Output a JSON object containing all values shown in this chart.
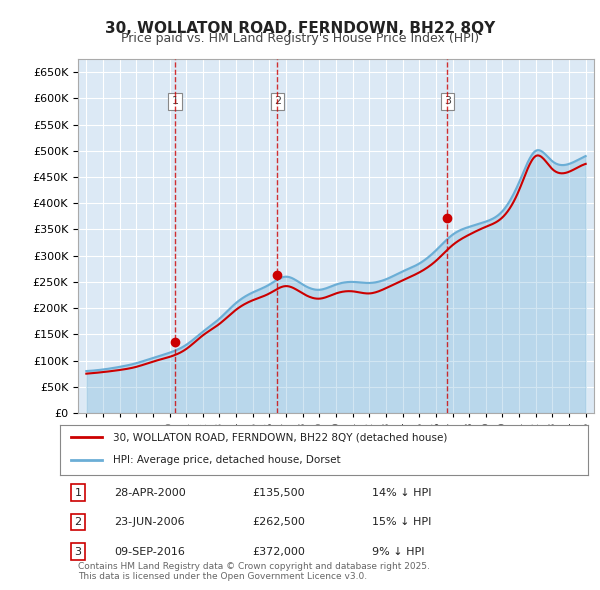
{
  "title": "30, WOLLATON ROAD, FERNDOWN, BH22 8QY",
  "subtitle": "Price paid vs. HM Land Registry's House Price Index (HPI)",
  "hpi_color": "#6baed6",
  "price_color": "#cc0000",
  "background_color": "#ffffff",
  "plot_bg_color": "#dce9f5",
  "grid_color": "#ffffff",
  "ylim": [
    0,
    675000
  ],
  "yticks": [
    0,
    50000,
    100000,
    150000,
    200000,
    250000,
    300000,
    350000,
    400000,
    450000,
    500000,
    550000,
    600000,
    650000
  ],
  "ylabel_format": "£{0}K",
  "transactions": [
    {
      "date_num": 2000.32,
      "price": 135500,
      "label": "1",
      "hpi_pct": 14
    },
    {
      "date_num": 2006.48,
      "price": 262500,
      "label": "2",
      "hpi_pct": 15
    },
    {
      "date_num": 2016.69,
      "price": 372000,
      "label": "3",
      "hpi_pct": 9
    }
  ],
  "transaction_dates_str": [
    "28-APR-2000",
    "23-JUN-2006",
    "09-SEP-2016"
  ],
  "transaction_prices_str": [
    "£135,500",
    "£262,500",
    "£372,000"
  ],
  "transaction_hpi_str": [
    "14% ↓ HPI",
    "15% ↓ HPI",
    "9% ↓ HPI"
  ],
  "legend_line1": "30, WOLLATON ROAD, FERNDOWN, BH22 8QY (detached house)",
  "legend_line2": "HPI: Average price, detached house, Dorset",
  "footer": "Contains HM Land Registry data © Crown copyright and database right 2025.\nThis data is licensed under the Open Government Licence v3.0.",
  "vline_color": "#cc0000",
  "vline_dates": [
    2000.32,
    2006.48,
    2016.69
  ],
  "hpi_data": {
    "years": [
      1995,
      1996,
      1997,
      1998,
      1999,
      2000,
      2001,
      2002,
      2003,
      2004,
      2005,
      2006,
      2007,
      2008,
      2009,
      2010,
      2011,
      2012,
      2013,
      2014,
      2015,
      2016,
      2017,
      2018,
      2019,
      2020,
      2021,
      2022,
      2023,
      2024,
      2025
    ],
    "values": [
      80000,
      83000,
      88000,
      95000,
      105000,
      115000,
      130000,
      155000,
      180000,
      210000,
      230000,
      245000,
      260000,
      245000,
      235000,
      245000,
      250000,
      248000,
      255000,
      270000,
      285000,
      310000,
      340000,
      355000,
      365000,
      385000,
      440000,
      500000,
      480000,
      475000,
      490000
    ]
  },
  "price_data": {
    "years": [
      1995,
      1996,
      1997,
      1998,
      1999,
      2000,
      2001,
      2002,
      2003,
      2004,
      2005,
      2006,
      2007,
      2008,
      2009,
      2010,
      2011,
      2012,
      2013,
      2014,
      2015,
      2016,
      2017,
      2018,
      2019,
      2020,
      2021,
      2022,
      2023,
      2024,
      2025
    ],
    "values": [
      75000,
      78000,
      82000,
      88000,
      98000,
      107000,
      122000,
      148000,
      170000,
      197000,
      215000,
      228000,
      242000,
      228000,
      218000,
      228000,
      232000,
      228000,
      238000,
      253000,
      268000,
      290000,
      320000,
      340000,
      355000,
      373000,
      425000,
      490000,
      465000,
      460000,
      475000
    ]
  }
}
